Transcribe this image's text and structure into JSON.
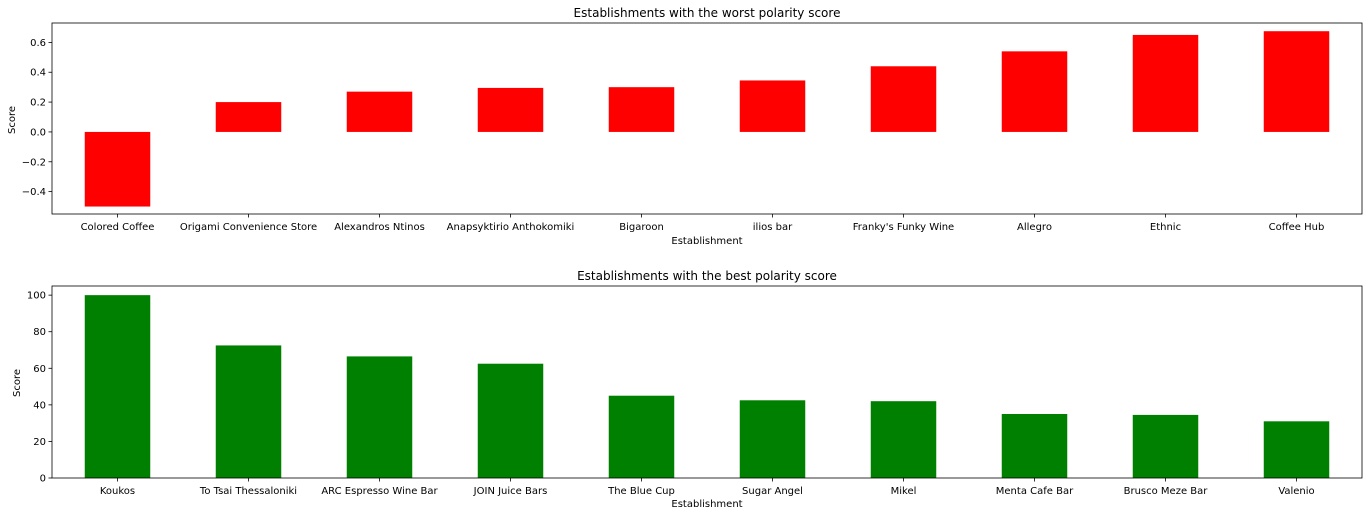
{
  "chart_data": [
    {
      "type": "bar",
      "title": "Establishments with the worst polarity score",
      "xlabel": "Establishment",
      "ylabel": "Score",
      "categories": [
        "Colored Coffee",
        "Origami Convenience Store",
        "Alexandros Ntinos",
        "Anapsyktirio Anthokomiki",
        "Bigaroon",
        "ilios bar",
        "Franky's Funky Wine",
        "Allegro",
        "Ethnic",
        "Coffee Hub"
      ],
      "values": [
        -0.5,
        0.2,
        0.27,
        0.295,
        0.3,
        0.345,
        0.44,
        0.54,
        0.65,
        0.675
      ],
      "ylim": [
        -0.55,
        0.73
      ],
      "yticks": [
        -0.4,
        -0.2,
        0.0,
        0.2,
        0.4,
        0.6
      ],
      "ytick_labels": [
        "−0.4",
        "−0.2",
        "0.0",
        "0.2",
        "0.4",
        "0.6"
      ],
      "color": "#ff0000",
      "grid": false
    },
    {
      "type": "bar",
      "title": "Establishments with the best polarity score",
      "xlabel": "Establishment",
      "ylabel": "Score",
      "categories": [
        "Koukos",
        "To Tsai Thessaloniki",
        "ARC Espresso Wine Bar",
        "JOIN Juice Bars",
        "The Blue Cup",
        "Sugar Angel",
        "Mikel",
        "Menta Cafe Bar",
        "Brusco Meze Bar",
        "Valenio"
      ],
      "values": [
        100,
        72.5,
        66.5,
        62.5,
        45,
        42.5,
        42,
        35,
        34.5,
        31
      ],
      "ylim": [
        0,
        105
      ],
      "yticks": [
        0,
        20,
        40,
        60,
        80,
        100
      ],
      "ytick_labels": [
        "0",
        "20",
        "40",
        "60",
        "80",
        "100"
      ],
      "color": "#008000",
      "grid": false
    }
  ]
}
